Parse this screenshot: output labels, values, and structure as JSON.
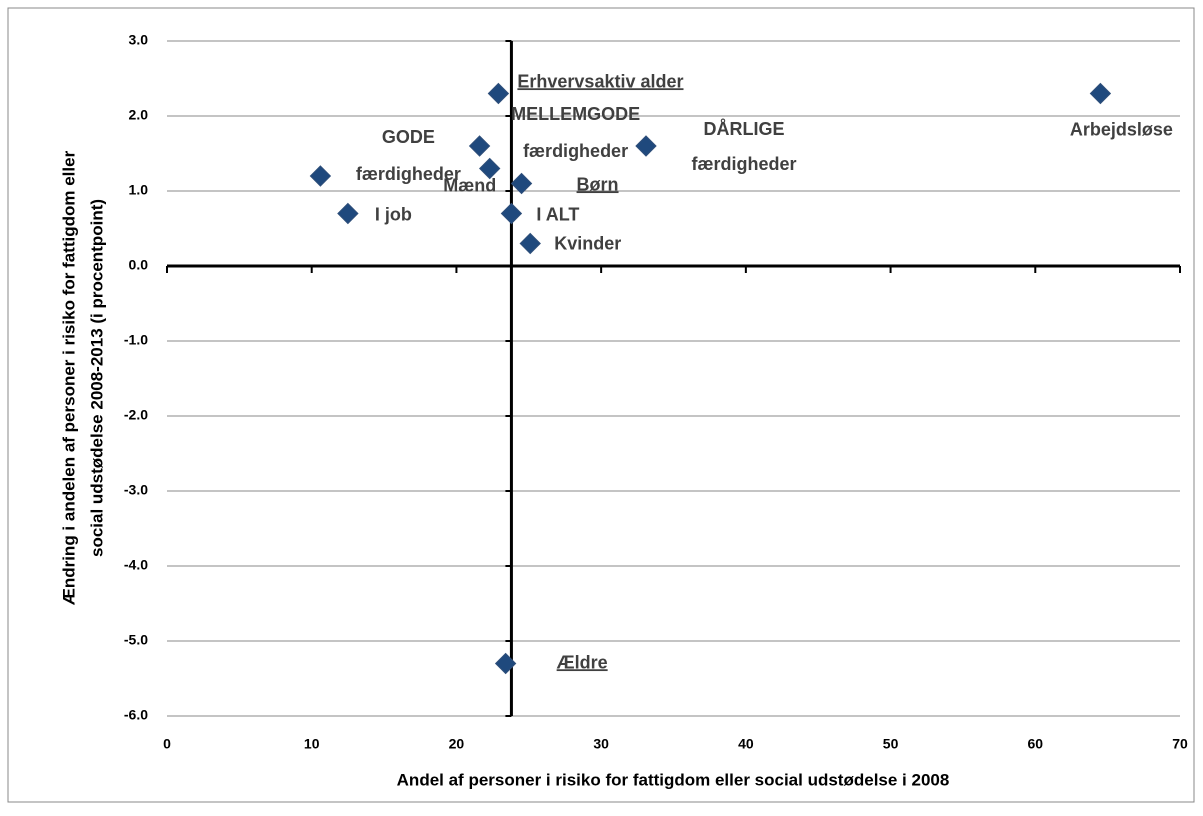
{
  "chart_data": {
    "type": "scatter",
    "x_label": "Andel af personer i risiko for fattigdom eller social udstødelse i 2008",
    "y_label": [
      "Ændring i andelen af personer i risiko for fattigdom eller",
      "social udstødelse 2008-2013 (i procentpoint)"
    ],
    "x": [
      64.5,
      22.9,
      10.6,
      21.6,
      33.1,
      22.3,
      24.5,
      12.5,
      23.8,
      25.1,
      23.4
    ],
    "values": [
      2.3,
      2.3,
      1.2,
      1.6,
      1.6,
      1.3,
      1.1,
      0.7,
      0.7,
      0.3,
      -5.3
    ],
    "labels": [
      [
        "Arbejdsløse"
      ],
      [
        "Erhvervsaktiv alder"
      ],
      [
        "GODE",
        "færdigheder"
      ],
      [
        "MELLEMGODE",
        "færdigheder"
      ],
      [
        "DÅRLIGE",
        "færdigheder"
      ],
      [
        "Mænd"
      ],
      [
        "Børn"
      ],
      [
        "I job"
      ],
      [
        "I ALT"
      ],
      [
        "Kvinder"
      ],
      [
        "Ældre"
      ]
    ],
    "color": "#1f497d",
    "xlim": [
      0,
      70
    ],
    "xticks": [
      0,
      10,
      20,
      30,
      40,
      50,
      60,
      70
    ],
    "ylim": [
      -6,
      3
    ],
    "yticks": [
      {
        "value": 3,
        "label": "3.0"
      },
      {
        "value": 2,
        "label": "2.0"
      },
      {
        "value": 1,
        "label": "1.0"
      },
      {
        "value": 0,
        "label": "0.0"
      },
      {
        "value": -1,
        "label": "-1.0"
      },
      {
        "value": -2,
        "label": "-2.0"
      },
      {
        "value": -3,
        "label": "-3.0"
      },
      {
        "value": -4,
        "label": "-4.0"
      },
      {
        "value": -5,
        "label": "-5.0"
      },
      {
        "value": -6,
        "label": "-6.0"
      }
    ],
    "y_axis_crosses_at": 23.8,
    "grid": true
  }
}
